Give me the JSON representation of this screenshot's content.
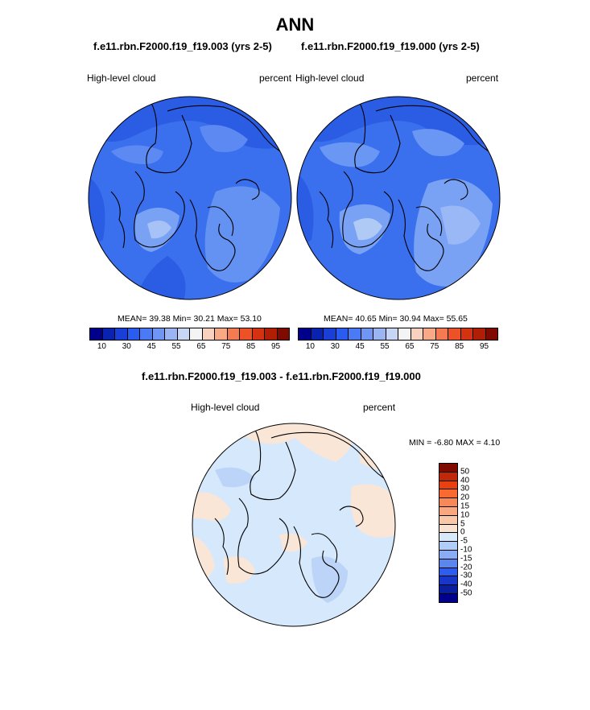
{
  "title": "ANN",
  "panels": [
    {
      "case": "f.e11.rbn.F2000.f19_f19.003 (yrs 2-5)",
      "variable": "High-level cloud",
      "units": "percent",
      "stats": "MEAN=  39.38  Min=  30.21  Max=  53.10"
    },
    {
      "case": "f.e11.rbn.F2000.f19_f19.000 (yrs 2-5)",
      "variable": "High-level cloud",
      "units": "percent",
      "stats": "MEAN=  40.65  Min=  30.94  Max=  55.65"
    }
  ],
  "diff": {
    "title": "f.e11.rbn.F2000.f19_f19.003 - f.e11.rbn.F2000.f19_f19.000",
    "variable": "High-level cloud",
    "units": "percent",
    "minmax": "MIN =  -6.80 MAX =   4.10"
  },
  "colorbar_top": {
    "ticks": [
      "10",
      "30",
      "45",
      "55",
      "65",
      "75",
      "85",
      "95"
    ],
    "colors": [
      "#00008b",
      "#0a22b0",
      "#1a3fd6",
      "#2a5cf0",
      "#4a7af4",
      "#7096f4",
      "#9ab5f2",
      "#c6d6f4",
      "#f4f4f4",
      "#f8d2be",
      "#f8aa86",
      "#f47a52",
      "#ec5226",
      "#d43210",
      "#b01e06",
      "#7e0a00"
    ]
  },
  "colorbar_diff": {
    "ticks": [
      "50",
      "40",
      "30",
      "20",
      "15",
      "10",
      "5",
      "0",
      "-5",
      "-10",
      "-15",
      "-20",
      "-30",
      "-40",
      "-50"
    ],
    "colors": [
      "#7e0a00",
      "#c02808",
      "#e8400e",
      "#f86a30",
      "#f88858",
      "#f8a880",
      "#f8c8a8",
      "#fae2d0",
      "#d8eafa",
      "#b0ccf8",
      "#8aacf4",
      "#5a86f0",
      "#2e5cec",
      "#1836c8",
      "#0a1ea0",
      "#00008b"
    ]
  },
  "maps": {
    "base_color_1": "#2f64ea",
    "base_color_2": "#3a70ee",
    "diff_base": "#d6e8fc",
    "diff_warm": "#fae6d6"
  }
}
